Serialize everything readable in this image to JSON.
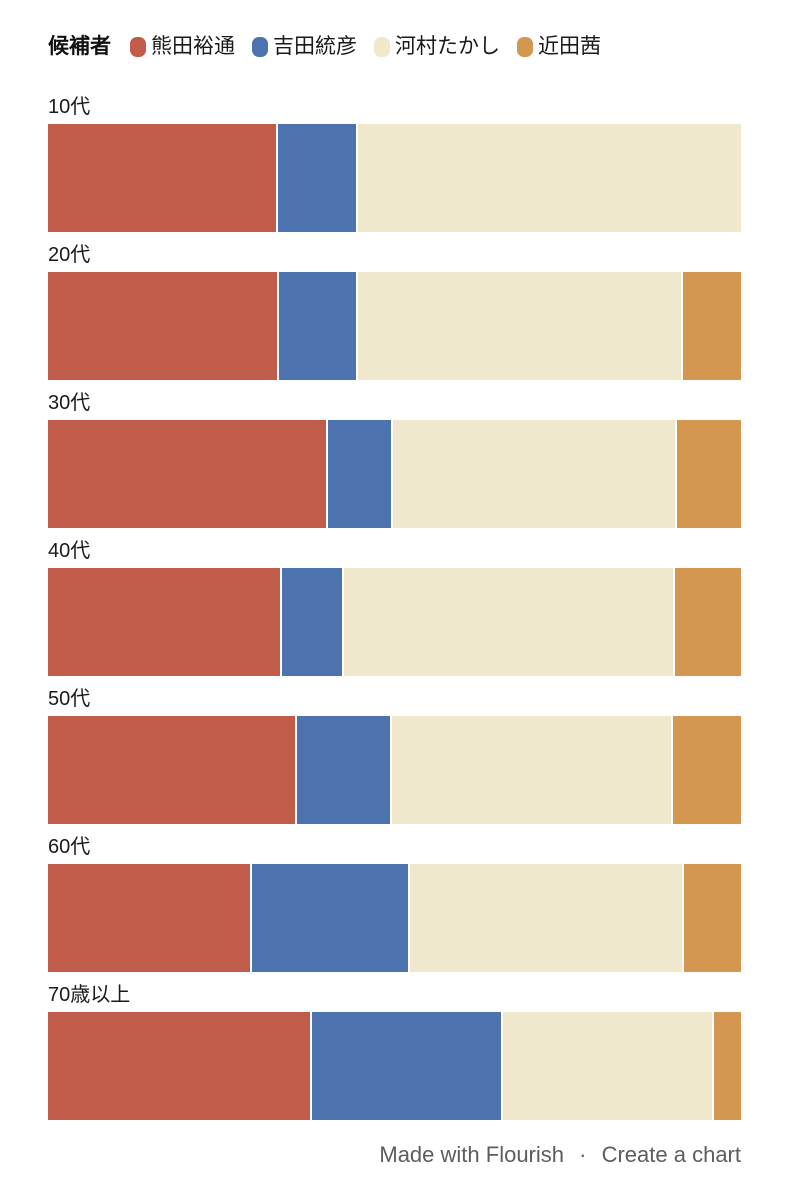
{
  "legend": {
    "title": "候補者"
  },
  "footer": {
    "made_with": "Made with Flourish",
    "separator": "·",
    "create": "Create a chart"
  },
  "colors": {
    "background": "#ffffff",
    "label_text": "#1a1a1a",
    "footer_text": "#5d5d5d",
    "segment_gap": "#ffffff"
  },
  "chart_data": {
    "type": "bar",
    "orientation": "horizontal",
    "stacked": true,
    "unit": "percent",
    "title": "",
    "legend_title": "候補者",
    "legend_position": "top",
    "grid": false,
    "xlim": [
      0,
      100
    ],
    "categories": [
      "10代",
      "20代",
      "30代",
      "40代",
      "50代",
      "60代",
      "70歳以上"
    ],
    "series": [
      {
        "name": "熊田裕通",
        "color": "#C15C4B",
        "values": [
          33.2,
          33.3,
          40.4,
          33.8,
          35.9,
          29.4,
          38.1
        ]
      },
      {
        "name": "吉田統彦",
        "color": "#4C73AE",
        "values": [
          11.5,
          11.5,
          9.4,
          8.9,
          13.7,
          22.8,
          27.6
        ]
      },
      {
        "name": "河村たかし",
        "color": "#F0E8CC",
        "values": [
          55.3,
          46.9,
          41.0,
          47.8,
          40.6,
          39.6,
          30.4
        ]
      },
      {
        "name": "近田茜",
        "color": "#D39750",
        "values": [
          0,
          8.3,
          9.2,
          9.5,
          9.8,
          8.2,
          3.9
        ]
      }
    ]
  }
}
